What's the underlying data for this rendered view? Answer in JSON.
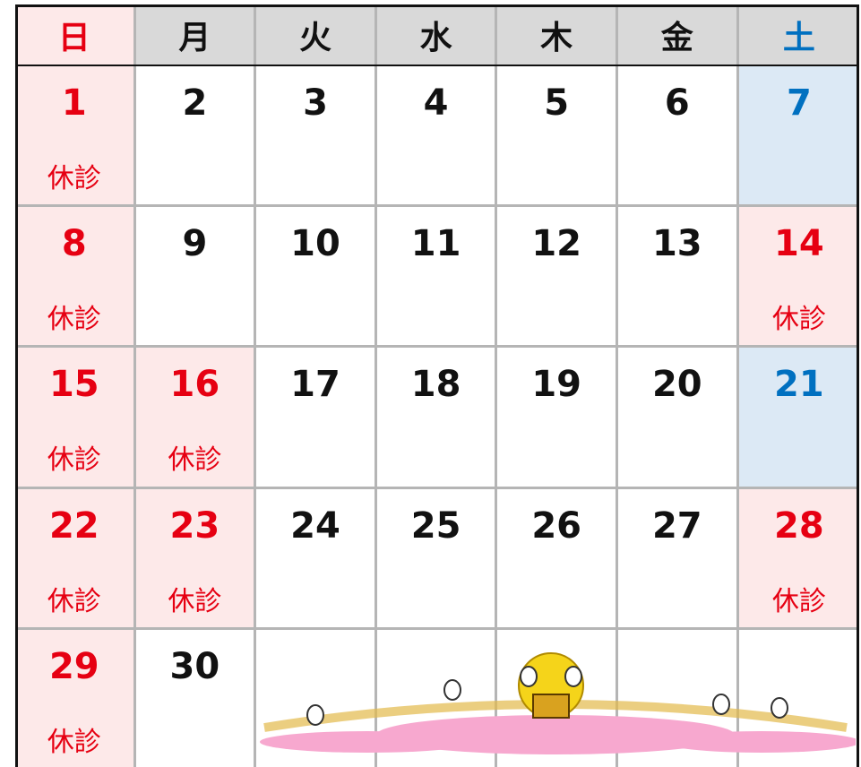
{
  "header": [
    "日",
    "月",
    "火",
    "水",
    "木",
    "金",
    "土"
  ],
  "weeks": [
    [
      {
        "day": 1,
        "note": "休診"
      },
      {
        "day": 2
      },
      {
        "day": 3
      },
      {
        "day": 4
      },
      {
        "day": 5
      },
      {
        "day": 6
      },
      {
        "day": 7
      }
    ],
    [
      {
        "day": 8,
        "note": "休診"
      },
      {
        "day": 9
      },
      {
        "day": 10
      },
      {
        "day": 11
      },
      {
        "day": 12
      },
      {
        "day": 13
      },
      {
        "day": 14,
        "note": "休診"
      }
    ],
    [
      {
        "day": 15,
        "note": "休診"
      },
      {
        "day": 16,
        "note": "休診"
      },
      {
        "day": 17
      },
      {
        "day": 18
      },
      {
        "day": 19
      },
      {
        "day": 20
      },
      {
        "day": 21
      }
    ],
    [
      {
        "day": 22,
        "note": "休診"
      },
      {
        "day": 23,
        "note": "休診"
      },
      {
        "day": 24
      },
      {
        "day": 25
      },
      {
        "day": 26
      },
      {
        "day": 27
      },
      {
        "day": 28,
        "note": "休診"
      }
    ],
    [
      {
        "day": 29,
        "note": "休診"
      },
      {
        "day": 30
      },
      null,
      null,
      null,
      null,
      null
    ]
  ]
}
